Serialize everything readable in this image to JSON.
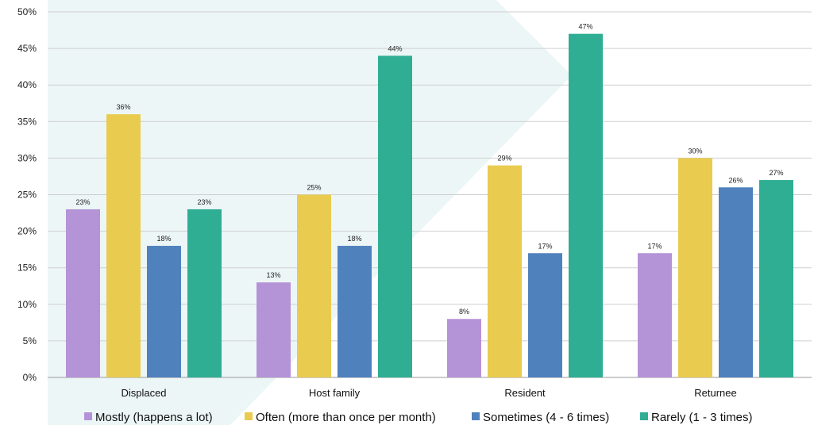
{
  "chart_data": {
    "type": "bar",
    "categories": [
      "Displaced",
      "Host family",
      "Resident",
      "Returnee"
    ],
    "series": [
      {
        "name": "Mostly (happens a lot)",
        "color": "#b593d7",
        "values": [
          23,
          13,
          8,
          17
        ]
      },
      {
        "name": "Often (more than once per month)",
        "color": "#e9cb4f",
        "values": [
          36,
          25,
          29,
          30
        ]
      },
      {
        "name": "Sometimes (4 - 6 times)",
        "color": "#4f81bd",
        "values": [
          18,
          18,
          17,
          26
        ]
      },
      {
        "name": "Rarely (1 - 3 times)",
        "color": "#2fae93",
        "values": [
          23,
          44,
          47,
          27
        ]
      }
    ],
    "ylim": [
      0,
      50
    ],
    "yticks": [
      0,
      5,
      10,
      15,
      20,
      25,
      30,
      35,
      40,
      45,
      50
    ],
    "value_suffix": "%",
    "grid": true,
    "legend": "bottom",
    "title": "",
    "xlabel": "",
    "ylabel": ""
  }
}
